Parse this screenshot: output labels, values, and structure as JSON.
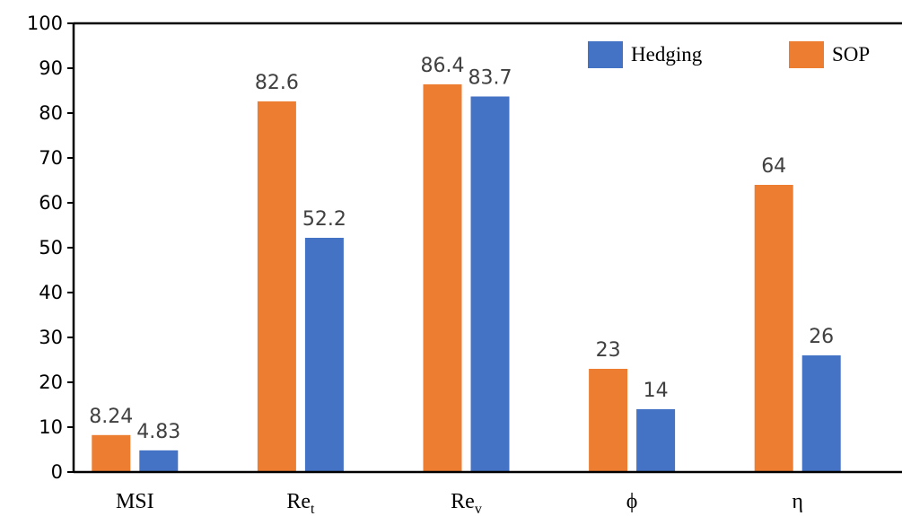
{
  "chart_data": {
    "type": "bar",
    "title": "",
    "xlabel": "",
    "ylabel": "",
    "ylim": [
      0,
      100
    ],
    "yticks": [
      0,
      10,
      20,
      30,
      40,
      50,
      60,
      70,
      80,
      90,
      100
    ],
    "grid": false,
    "legend_position": "top-right",
    "categories": [
      {
        "base": "MSI",
        "sub": ""
      },
      {
        "base": "Re",
        "sub": "t"
      },
      {
        "base": "Re",
        "sub": "v"
      },
      {
        "base": "ϕ",
        "sub": ""
      },
      {
        "base": "η",
        "sub": ""
      }
    ],
    "series": [
      {
        "name": "SOP",
        "color": "#ED7D31",
        "values": [
          8.24,
          82.6,
          86.4,
          23,
          64
        ]
      },
      {
        "name": "Hedging",
        "color": "#4472C4",
        "values": [
          4.83,
          52.2,
          83.7,
          14,
          26
        ]
      }
    ],
    "legend_order": [
      "Hedging",
      "SOP"
    ]
  }
}
